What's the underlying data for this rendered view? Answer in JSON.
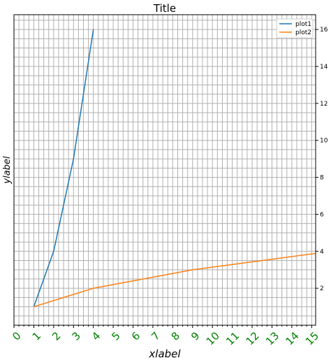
{
  "chart_data": {
    "type": "line",
    "title": "Title",
    "xlabel": "xlabel",
    "ylabel": "ylabel",
    "xlim": [
      0,
      15.2
    ],
    "ylim": [
      0,
      16.8
    ],
    "xticks": [
      0,
      1,
      2,
      3,
      4,
      5,
      6,
      7,
      8,
      9,
      10,
      11,
      12,
      13,
      14,
      15
    ],
    "xtick_labels": [
      "0",
      "1",
      "2",
      "3",
      "4",
      "5",
      "6",
      "7",
      "8",
      "9",
      "10",
      "11",
      "12",
      "13",
      "14",
      "15"
    ],
    "xtick_color": "#008000",
    "yticks": [
      2,
      4,
      6,
      8,
      10,
      12,
      14,
      16
    ],
    "ytick_labels": [
      "2",
      "4",
      "6",
      "8",
      "10",
      "12",
      "14",
      "16"
    ],
    "yaxis_position": "right",
    "grid": true,
    "minor_grid": true,
    "legend_position": "top-right",
    "series": [
      {
        "name": "plot1",
        "color": "#1f77b4",
        "x": [
          1,
          2,
          3,
          4
        ],
        "y": [
          1,
          4,
          9,
          16
        ]
      },
      {
        "name": "plot2",
        "color": "#ff7f0e",
        "x": [
          1,
          4,
          9,
          16
        ],
        "y": [
          1,
          2,
          3,
          4
        ]
      }
    ]
  }
}
